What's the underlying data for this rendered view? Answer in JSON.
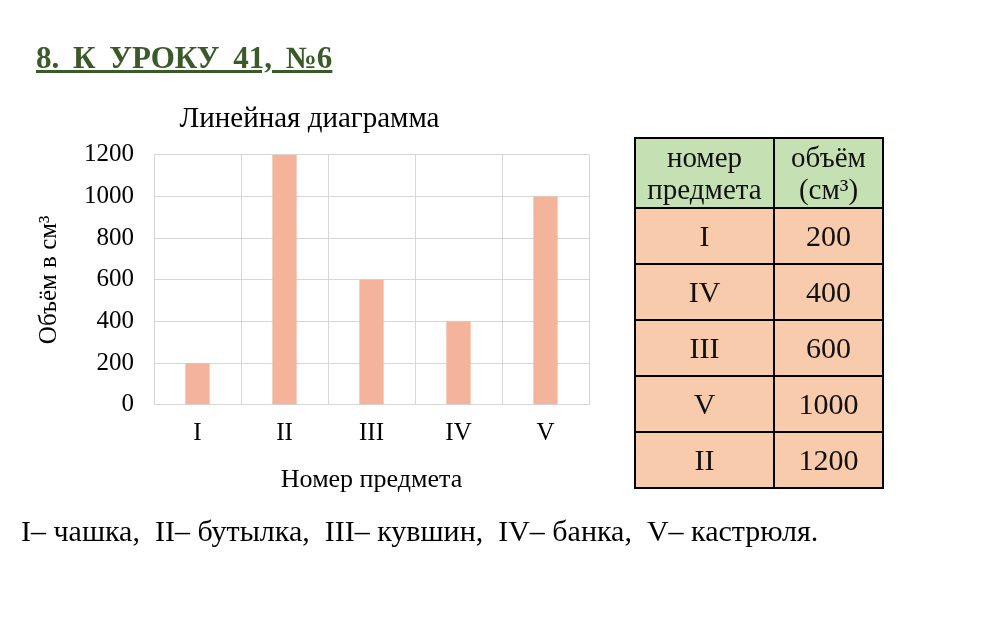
{
  "chart_data": [
    {
      "type": "bar",
      "title": "Линейная диаграмма",
      "categories": [
        "I",
        "II",
        "III",
        "IV",
        "V"
      ],
      "values": [
        200,
        1200,
        600,
        400,
        1000
      ],
      "color": "#f4b49c",
      "ylim": [
        0,
        1200
      ],
      "yticks": [
        0,
        200,
        400,
        600,
        800,
        1000,
        1200
      ],
      "xlabel": "Номер предмета",
      "ylabel": "Объём в см³",
      "grid": true,
      "annotations": [
        "8. К УРОКУ 41, №6",
        "I– чашка,  II– бутылка,  III– кувшин,  IV– банка,  V– кастрюля."
      ]
    },
    {
      "type": "other",
      "categories": [
        "I",
        "IV",
        "III",
        "V",
        "II"
      ],
      "values": [
        200,
        400,
        600,
        1000,
        1200
      ],
      "xlabel": "номер предмета",
      "ylabel": "объём (см³)",
      "color": "#f8cbad",
      "data_labels": true
    }
  ]
}
